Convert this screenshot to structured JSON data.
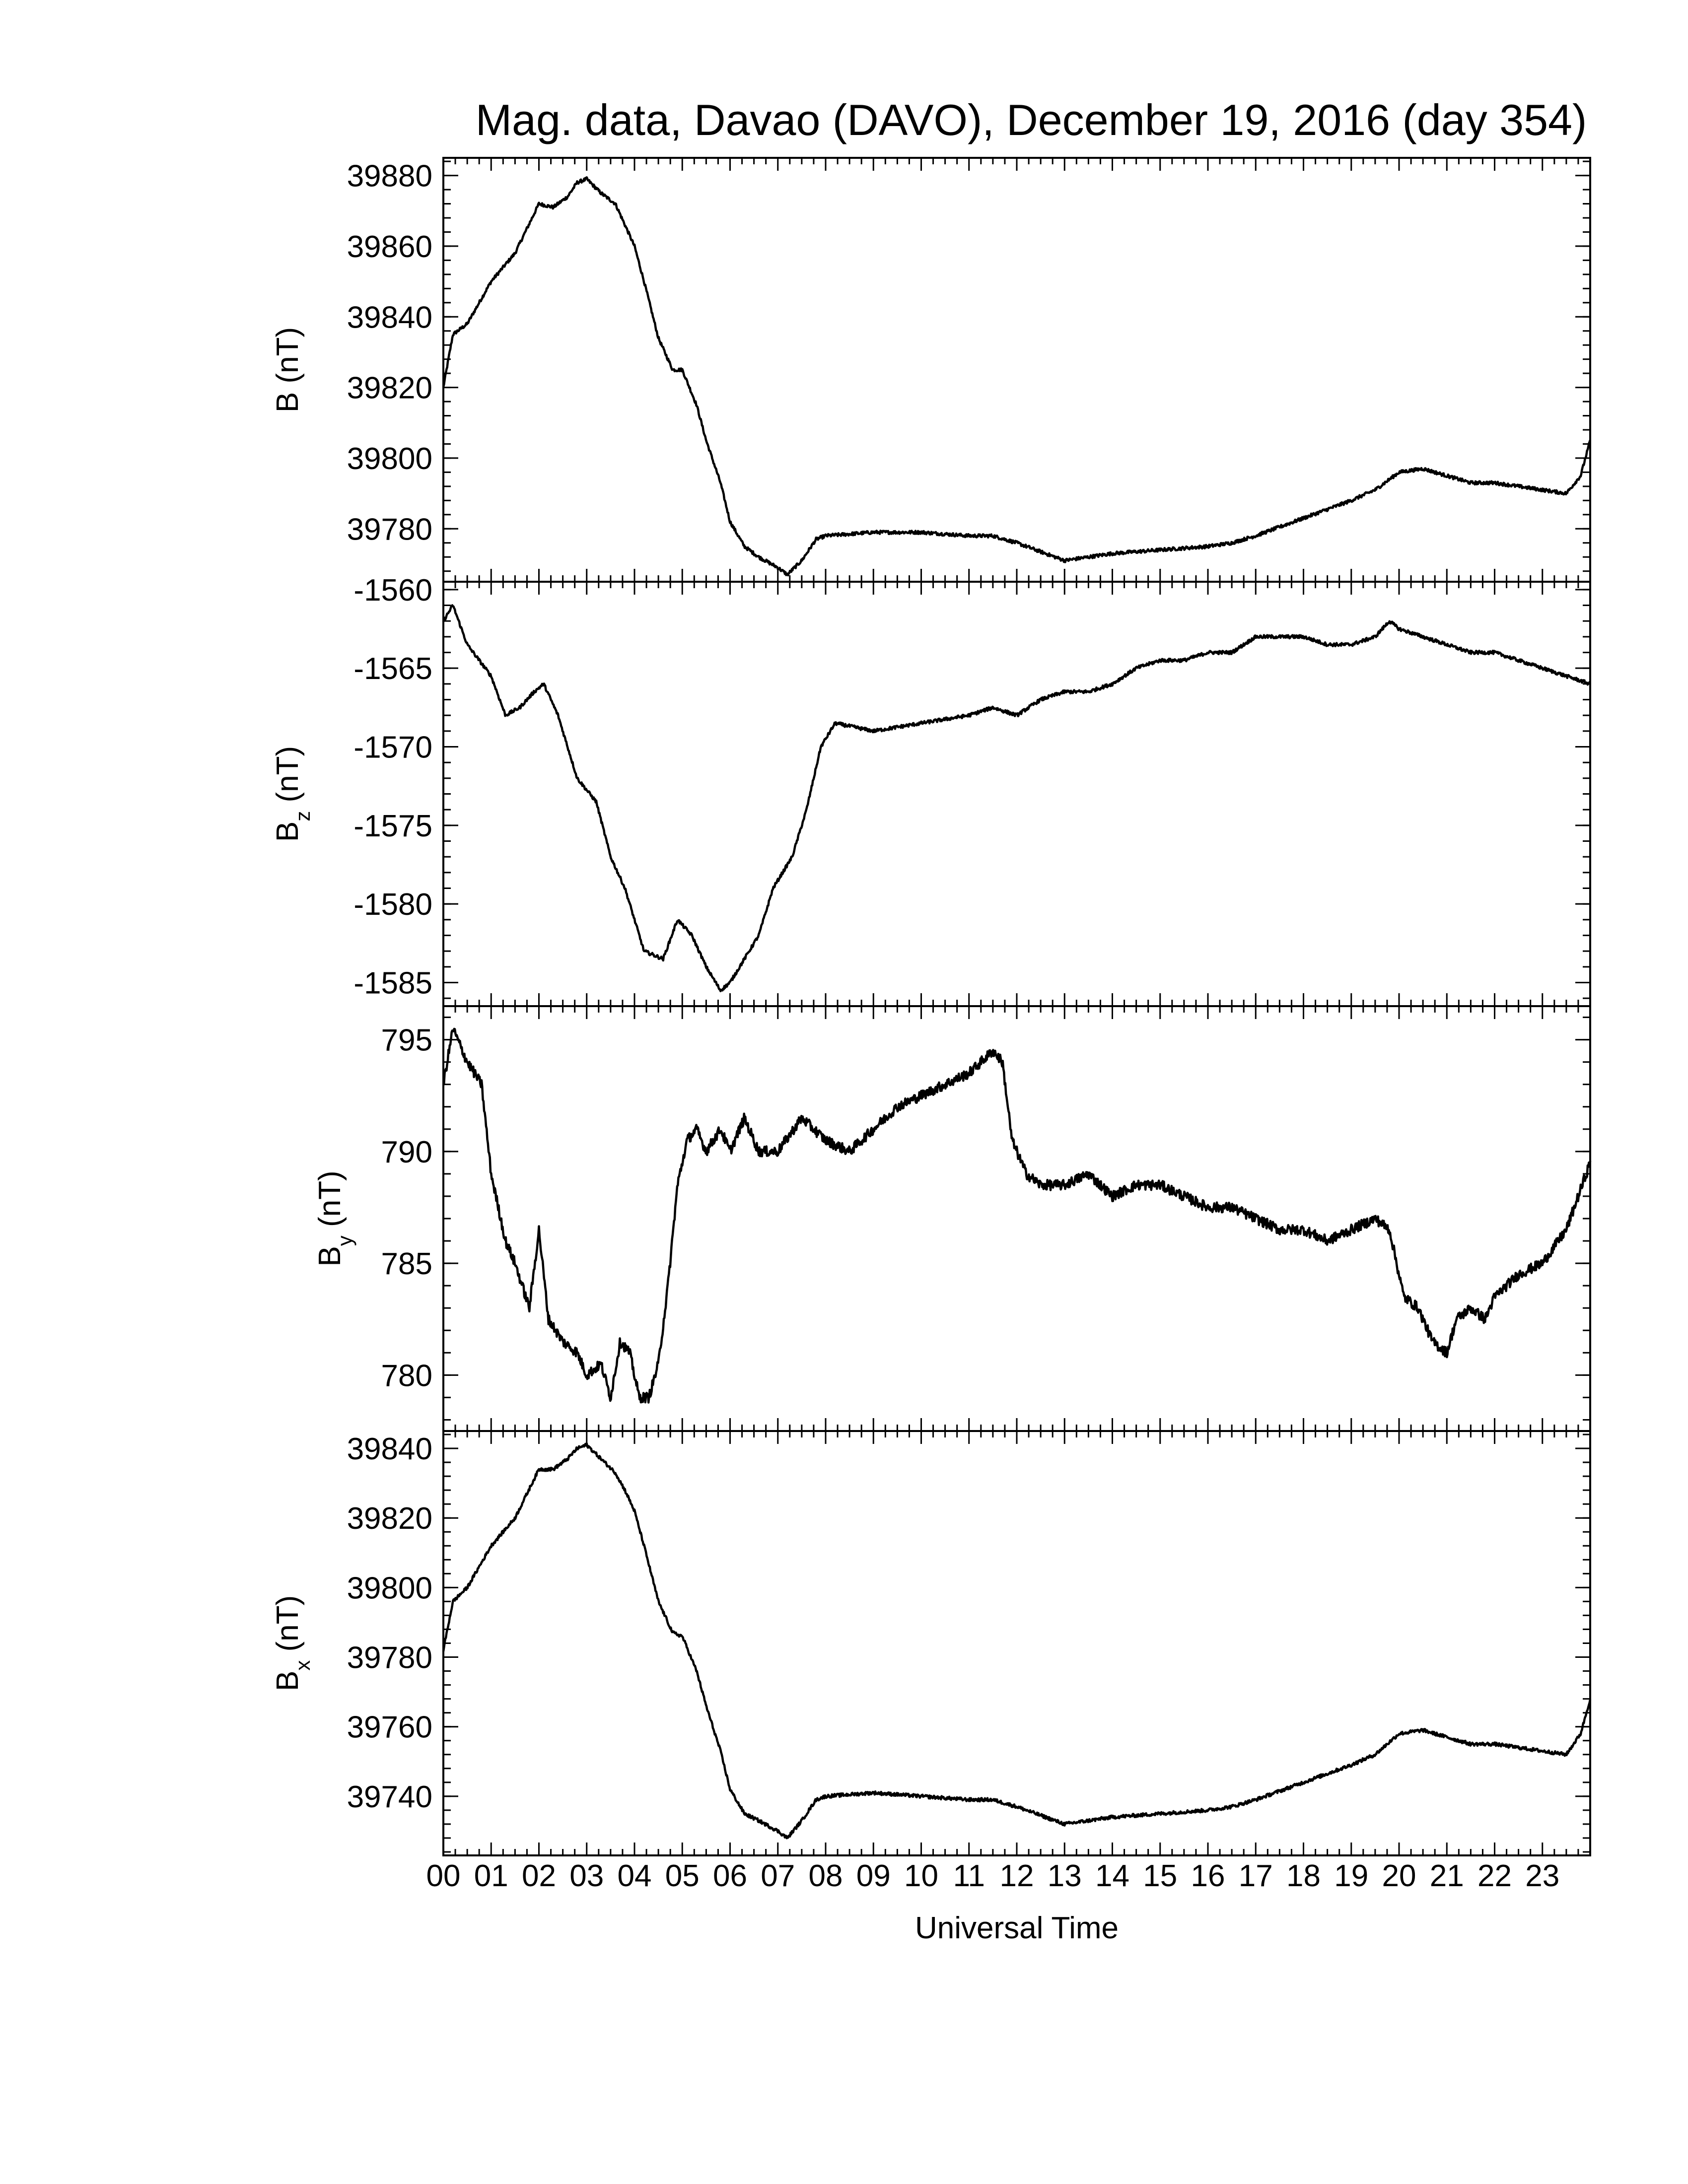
{
  "chart_title": "Mag. data, Davao (DAVO), December 19, 2016 (day 354)",
  "x_axis": {
    "label": "Universal Time",
    "tick_labels": [
      "00",
      "01",
      "02",
      "03",
      "04",
      "05",
      "06",
      "07",
      "08",
      "09",
      "10",
      "11",
      "12",
      "13",
      "14",
      "15",
      "16",
      "17",
      "18",
      "19",
      "20",
      "21",
      "22",
      "23"
    ]
  },
  "chart_data": [
    {
      "type": "line",
      "ylabel": "B (nT)",
      "ylabel_main": "B",
      "ylabel_sub": "",
      "ylabel_unit": "(nT)",
      "ylim": [
        39765,
        39885
      ],
      "yticks": [
        39780,
        39800,
        39820,
        39840,
        39860,
        39880
      ],
      "ytick_labels": [
        "39780",
        "39800",
        "39820",
        "39840",
        "39860",
        "39880"
      ],
      "x_hours": [
        0,
        0.2,
        0.5,
        1.0,
        1.5,
        2.0,
        2.3,
        2.6,
        2.8,
        3.0,
        3.3,
        3.6,
        3.8,
        4.0,
        4.2,
        4.5,
        4.8,
        5.0,
        5.3,
        5.5,
        5.8,
        6.0,
        6.3,
        6.6,
        7.0,
        7.2,
        7.5,
        7.8,
        8.0,
        9.0,
        10.0,
        11.0,
        11.5,
        12.0,
        13.0,
        14.0,
        15.0,
        16.0,
        16.5,
        17.0,
        18.0,
        19.0,
        19.5,
        20.0,
        20.5,
        21.0,
        21.5,
        22.0,
        22.5,
        23.0,
        23.5,
        23.8,
        24.0
      ],
      "values": [
        39820,
        39835,
        39838,
        39850,
        39858,
        39872,
        39871,
        39874,
        39878,
        39879,
        39875,
        39872,
        39866,
        39860,
        39850,
        39834,
        39825,
        39825,
        39815,
        39805,
        39793,
        39782,
        39775,
        39772,
        39769,
        39767,
        39771,
        39777,
        39778,
        39779,
        39779,
        39778,
        39778,
        39776,
        39771,
        39773,
        39774,
        39775,
        39776,
        39778,
        39783,
        39788,
        39791,
        39796,
        39797,
        39795,
        39793,
        39793,
        39792,
        39791,
        39790,
        39795,
        39805
      ]
    },
    {
      "type": "line",
      "ylabel": "Bz (nT)",
      "ylabel_main": "B",
      "ylabel_sub": "z",
      "ylabel_unit": "(nT)",
      "ylim": [
        -1586.5,
        -1559.5
      ],
      "yticks": [
        -1585,
        -1580,
        -1575,
        -1570,
        -1565,
        -1560
      ],
      "ytick_labels": [
        "-1585",
        "-1580",
        "-1575",
        "-1570",
        "-1565",
        "-1560"
      ],
      "x_hours": [
        0,
        0.2,
        0.5,
        1.0,
        1.3,
        1.6,
        1.9,
        2.1,
        2.4,
        2.8,
        3.2,
        3.5,
        3.8,
        4.2,
        4.6,
        4.9,
        5.2,
        5.5,
        5.8,
        6.0,
        6.3,
        6.6,
        6.9,
        7.3,
        7.6,
        7.9,
        8.2,
        9.0,
        10.0,
        11.0,
        11.5,
        12.0,
        12.5,
        13.0,
        13.5,
        14.0,
        14.5,
        15.0,
        15.5,
        16.0,
        16.5,
        17.0,
        17.5,
        18.0,
        18.5,
        19.0,
        19.5,
        19.8,
        20.0,
        20.5,
        21.0,
        21.5,
        22.0,
        22.5,
        23.0,
        23.5,
        24.0
      ],
      "values": [
        -1562,
        -1561,
        -1563.5,
        -1565.5,
        -1568,
        -1567.5,
        -1566.5,
        -1566,
        -1568,
        -1572,
        -1573.5,
        -1577,
        -1579,
        -1583,
        -1583.5,
        -1581,
        -1582,
        -1584,
        -1585.5,
        -1585,
        -1583.5,
        -1582,
        -1579,
        -1577,
        -1574,
        -1570,
        -1568.5,
        -1569,
        -1568.5,
        -1568,
        -1567.5,
        -1568,
        -1567,
        -1566.5,
        -1566.5,
        -1566,
        -1565,
        -1564.5,
        -1564.5,
        -1564,
        -1564,
        -1563,
        -1563,
        -1563,
        -1563.5,
        -1563.5,
        -1563,
        -1562,
        -1562.5,
        -1563,
        -1563.5,
        -1564,
        -1564,
        -1564.5,
        -1565,
        -1565.5,
        -1566
      ]
    },
    {
      "type": "line",
      "ylabel": "By (nT)",
      "ylabel_main": "B",
      "ylabel_sub": "y",
      "ylabel_unit": "(nT)",
      "ylim": [
        777.5,
        796.5
      ],
      "yticks": [
        780,
        785,
        790,
        795
      ],
      "ytick_labels": [
        "780",
        "785",
        "790",
        "795"
      ],
      "x_hours": [
        0,
        0.2,
        0.5,
        0.8,
        1.0,
        1.3,
        1.5,
        1.8,
        2.0,
        2.2,
        2.5,
        2.8,
        3.0,
        3.3,
        3.5,
        3.7,
        3.9,
        4.1,
        4.3,
        4.5,
        4.7,
        4.9,
        5.1,
        5.3,
        5.5,
        5.8,
        6.0,
        6.3,
        6.6,
        7.0,
        7.5,
        8.0,
        8.5,
        9.0,
        9.5,
        10.0,
        10.5,
        11.0,
        11.5,
        11.7,
        11.9,
        12.2,
        12.5,
        13.0,
        13.5,
        14.0,
        14.5,
        15.0,
        15.5,
        16.0,
        16.5,
        17.0,
        17.5,
        18.0,
        18.5,
        19.0,
        19.5,
        19.8,
        20.1,
        20.4,
        20.7,
        21.0,
        21.2,
        21.5,
        21.8,
        22.0,
        22.5,
        23.0,
        23.5,
        24.0
      ],
      "values": [
        793,
        795.5,
        794,
        793,
        789,
        786,
        785,
        783,
        786.5,
        782.5,
        781.5,
        781,
        780,
        780.5,
        779,
        781.5,
        781,
        779,
        779,
        780.5,
        784,
        788.5,
        790.5,
        791,
        790,
        791,
        790,
        791.5,
        790,
        790,
        791.5,
        790.5,
        790,
        791,
        792,
        792.5,
        793,
        793.5,
        794.5,
        794,
        790.5,
        789,
        788.5,
        788.5,
        789,
        788,
        788.5,
        788.5,
        788,
        787.5,
        787.5,
        787,
        786.5,
        786.5,
        786,
        786.5,
        787,
        786.5,
        783.5,
        783,
        781.5,
        781,
        782.5,
        783,
        782.5,
        783.5,
        784.5,
        785,
        786.5,
        789.5
      ]
    },
    {
      "type": "line",
      "ylabel": "Bx (nT)",
      "ylabel_main": "B",
      "ylabel_sub": "x",
      "ylabel_unit": "(nT)",
      "ylim": [
        39723,
        39845
      ],
      "yticks": [
        39740,
        39760,
        39780,
        39800,
        39820,
        39840
      ],
      "ytick_labels": [
        "39740",
        "39760",
        "39780",
        "39800",
        "39820",
        "39840"
      ],
      "x_hours": [
        0,
        0.2,
        0.5,
        1.0,
        1.5,
        2.0,
        2.3,
        2.6,
        2.8,
        3.0,
        3.3,
        3.6,
        3.8,
        4.0,
        4.2,
        4.5,
        4.8,
        5.0,
        5.3,
        5.5,
        5.8,
        6.0,
        6.3,
        6.6,
        7.0,
        7.2,
        7.5,
        7.8,
        8.0,
        9.0,
        10.0,
        11.0,
        11.5,
        12.0,
        13.0,
        14.0,
        15.0,
        16.0,
        16.5,
        17.0,
        18.0,
        19.0,
        19.5,
        20.0,
        20.5,
        21.0,
        21.5,
        22.0,
        22.5,
        23.0,
        23.5,
        23.8,
        24.0
      ],
      "values": [
        39782,
        39796,
        39800,
        39812,
        39820,
        39834,
        39834,
        39837,
        39840,
        39841,
        39837,
        39833,
        39828,
        39822,
        39812,
        39796,
        39787,
        39786,
        39776,
        39766,
        39753,
        39742,
        39735,
        39733,
        39730,
        39728,
        39733,
        39739,
        39740,
        39741,
        39740,
        39739,
        39739,
        39737,
        39732,
        39734,
        39735,
        39736,
        39737,
        39739,
        39744,
        39749,
        39752,
        39758,
        39759,
        39757,
        39755,
        39755,
        39754,
        39753,
        39752,
        39758,
        39768
      ]
    }
  ]
}
